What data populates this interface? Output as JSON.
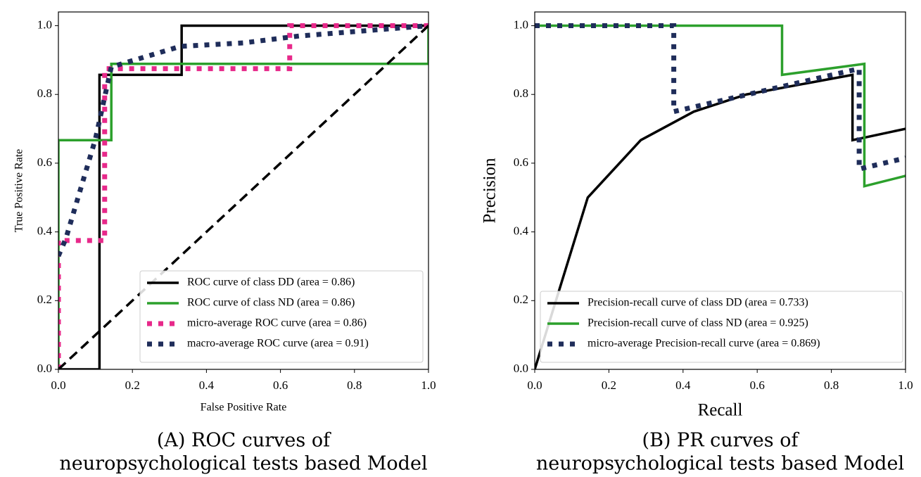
{
  "chart_data": [
    {
      "type": "line",
      "caption": [
        "(A) ROC curves of",
        "neuropsychological tests based Model"
      ],
      "x_label": "False Positive Rate",
      "y_label": "True Positive Rate",
      "xlim": [
        0,
        1
      ],
      "ylim": [
        0,
        1.04
      ],
      "xticks": [
        {
          "value": 0,
          "label": "0.0"
        },
        0.2,
        0.4,
        0.6,
        0.8,
        {
          "value": 1,
          "label": "1.0"
        }
      ],
      "yticks": [
        {
          "value": 0,
          "label": "0.0"
        },
        0.2,
        0.4,
        0.6,
        0.8,
        {
          "value": 1,
          "label": "1.0"
        }
      ],
      "legend": "lower right",
      "series": [
        {
          "name": "ROC curve of class DD (area = 0.86)",
          "color": "#000000",
          "style": "solid",
          "x": [
            0,
            0.111,
            0.111,
            0.333,
            0.333,
            1
          ],
          "values": [
            0,
            0,
            0.857,
            0.857,
            1,
            1
          ]
        },
        {
          "name": "ROC curve of class ND (area = 0.86)",
          "color": "#2ca02c",
          "style": "solid",
          "x": [
            0,
            0,
            0.143,
            0.143,
            1,
            1
          ],
          "values": [
            0,
            0.667,
            0.667,
            0.889,
            0.889,
            1
          ]
        },
        {
          "name": "micro-average ROC curve (area = 0.86)",
          "color": "#e7298a",
          "style": "dotted",
          "x": [
            0,
            0,
            0.125,
            0.125,
            0.625,
            0.625,
            1
          ],
          "values": [
            0,
            0.375,
            0.375,
            0.875,
            0.875,
            1,
            1
          ]
        },
        {
          "name": "macro-average ROC curve (area = 0.91)",
          "color": "#1f2d5a",
          "style": "dotted",
          "x": [
            0,
            0.02,
            0.1,
            0.143,
            0.33,
            0.5,
            0.65,
            1
          ],
          "values": [
            0.33,
            0.38,
            0.67,
            0.88,
            0.94,
            0.95,
            0.97,
            1
          ]
        },
        {
          "color": "#000000",
          "style": "dashed",
          "x": [
            0,
            1
          ],
          "values": [
            0,
            1
          ]
        }
      ]
    },
    {
      "type": "line",
      "caption": [
        "(B) PR curves of",
        "neuropsychological tests based Model"
      ],
      "x_label": "Recall",
      "y_label": "Precision",
      "xlim": [
        0,
        1
      ],
      "ylim": [
        0,
        1.04
      ],
      "xticks": [
        {
          "value": 0,
          "label": "0.0"
        },
        0.2,
        0.4,
        0.6,
        0.8,
        {
          "value": 1,
          "label": "1.0"
        }
      ],
      "yticks": [
        {
          "value": 0,
          "label": "0.0"
        },
        0.2,
        0.4,
        0.6,
        0.8,
        {
          "value": 1,
          "label": "1.0"
        }
      ],
      "legend": "lower left",
      "series": [
        {
          "name": "Precision-recall curve of class DD (area = 0.733)",
          "color": "#000000",
          "style": "solid",
          "x": [
            0,
            0.143,
            0.286,
            0.429,
            0.571,
            0.857,
            0.857,
            1
          ],
          "values": [
            0,
            0.5,
            0.667,
            0.75,
            0.8,
            0.857,
            0.667,
            0.7
          ]
        },
        {
          "name": "Precision-recall curve of class ND (area = 0.925)",
          "color": "#2ca02c",
          "style": "solid",
          "x": [
            0,
            0.667,
            0.667,
            0.889,
            0.889,
            1
          ],
          "values": [
            1,
            1,
            0.857,
            0.889,
            0.533,
            0.563
          ]
        },
        {
          "name": "micro-average Precision-recall curve (area = 0.869)",
          "color": "#1f2d5a",
          "style": "dotted",
          "x": [
            0,
            0.375,
            0.375,
            0.875,
            0.875,
            1
          ],
          "values": [
            1,
            1,
            0.75,
            0.875,
            0.583,
            0.615
          ]
        }
      ]
    }
  ]
}
